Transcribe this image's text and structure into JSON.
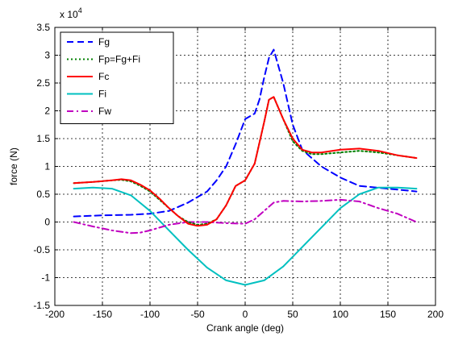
{
  "chart_data": {
    "type": "line",
    "title": "",
    "xlabel": "Crank angle (deg)",
    "ylabel": "force (N)",
    "y_multiplier_label": "x 10",
    "y_multiplier_exp": "4",
    "xlim": [
      -200,
      200
    ],
    "ylim": [
      -1.5,
      3.5
    ],
    "x_ticks": [
      -200,
      -150,
      -100,
      -50,
      0,
      50,
      100,
      150,
      200
    ],
    "y_ticks": [
      -1.5,
      -1,
      -0.5,
      0,
      0.5,
      1,
      1.5,
      2,
      2.5,
      3,
      3.5
    ],
    "x_tick_labels": [
      "-200",
      "-150",
      "-100",
      "-50",
      "0",
      "50",
      "100",
      "150",
      "200"
    ],
    "y_tick_labels": [
      "-1.5",
      "-1",
      "-0.5",
      "0",
      "0.5",
      "1",
      "1.5",
      "2",
      "2.5",
      "3",
      "3.5"
    ],
    "grid": true,
    "legend_position": "top-left",
    "series": [
      {
        "name": "Fg",
        "color": "#0000ff",
        "dash": "dashed",
        "x": [
          -180,
          -150,
          -120,
          -100,
          -80,
          -60,
          -40,
          -30,
          -20,
          -10,
          0,
          10,
          15,
          20,
          25,
          30,
          40,
          50,
          60,
          80,
          100,
          120,
          150,
          180
        ],
        "y": [
          0.1,
          0.12,
          0.13,
          0.15,
          0.2,
          0.35,
          0.55,
          0.75,
          1.0,
          1.4,
          1.85,
          1.95,
          2.2,
          2.6,
          2.95,
          3.1,
          2.5,
          1.75,
          1.3,
          1.0,
          0.8,
          0.65,
          0.6,
          0.55
        ]
      },
      {
        "name": "Fp=Fg+Fi",
        "color": "#008000",
        "dash": "dotted",
        "x": [
          -180,
          -160,
          -140,
          -130,
          -120,
          -110,
          -100,
          -90,
          -80,
          -70,
          -60,
          -50,
          -40,
          -30,
          -20,
          -10,
          0,
          10,
          20,
          25,
          30,
          40,
          50,
          60,
          70,
          80,
          100,
          120,
          140,
          160,
          180
        ],
        "y": [
          0.7,
          0.72,
          0.75,
          0.76,
          0.73,
          0.65,
          0.55,
          0.4,
          0.25,
          0.1,
          0.0,
          -0.05,
          -0.03,
          0.05,
          0.3,
          0.65,
          0.75,
          1.05,
          1.8,
          2.2,
          2.25,
          1.85,
          1.45,
          1.28,
          1.22,
          1.22,
          1.25,
          1.28,
          1.25,
          1.2,
          1.15
        ]
      },
      {
        "name": "Fc",
        "color": "#ff0000",
        "dash": "solid",
        "x": [
          -180,
          -160,
          -140,
          -130,
          -120,
          -110,
          -100,
          -90,
          -80,
          -70,
          -60,
          -50,
          -40,
          -30,
          -20,
          -10,
          0,
          10,
          20,
          25,
          30,
          40,
          50,
          60,
          70,
          80,
          100,
          120,
          140,
          160,
          180
        ],
        "y": [
          0.7,
          0.72,
          0.75,
          0.77,
          0.75,
          0.67,
          0.57,
          0.42,
          0.25,
          0.1,
          -0.03,
          -0.07,
          -0.05,
          0.05,
          0.3,
          0.65,
          0.75,
          1.05,
          1.8,
          2.2,
          2.25,
          1.85,
          1.5,
          1.3,
          1.25,
          1.25,
          1.3,
          1.32,
          1.28,
          1.2,
          1.15
        ]
      },
      {
        "name": "Fi",
        "color": "#00c0c0",
        "dash": "solid",
        "x": [
          -180,
          -160,
          -140,
          -120,
          -100,
          -80,
          -60,
          -40,
          -20,
          0,
          20,
          40,
          60,
          80,
          100,
          120,
          140,
          160,
          180
        ],
        "y": [
          0.6,
          0.62,
          0.6,
          0.48,
          0.2,
          -0.15,
          -0.5,
          -0.82,
          -1.05,
          -1.13,
          -1.05,
          -0.8,
          -0.45,
          -0.1,
          0.25,
          0.5,
          0.62,
          0.62,
          0.6
        ]
      },
      {
        "name": "Fw",
        "color": "#c000c0",
        "dash": "dashdot",
        "x": [
          -180,
          -160,
          -140,
          -120,
          -110,
          -100,
          -80,
          -60,
          -40,
          -20,
          0,
          10,
          20,
          30,
          40,
          60,
          80,
          100,
          120,
          140,
          160,
          180
        ],
        "y": [
          0.0,
          -0.08,
          -0.15,
          -0.2,
          -0.19,
          -0.15,
          -0.05,
          0.0,
          0.0,
          -0.02,
          -0.03,
          0.05,
          0.2,
          0.35,
          0.38,
          0.37,
          0.38,
          0.4,
          0.37,
          0.25,
          0.15,
          0.0
        ]
      }
    ]
  }
}
